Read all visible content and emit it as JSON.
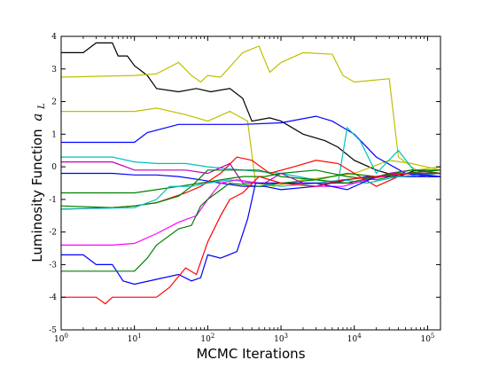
{
  "chart_data": {
    "type": "line",
    "xlabel": "MCMC Iterations",
    "ylabel": "Luminosity Function",
    "ylabel_symbol": "a",
    "ylabel_subscript": "L",
    "xscale": "log",
    "xlim": [
      1,
      150000
    ],
    "ylim": [
      -5,
      4
    ],
    "yticks": [
      -5,
      -4,
      -3,
      -2,
      -1,
      0,
      1,
      2,
      3,
      4
    ],
    "xticks": [
      {
        "value": 1,
        "base": "10",
        "exp": "0"
      },
      {
        "value": 10,
        "base": "10",
        "exp": "1"
      },
      {
        "value": 100,
        "base": "10",
        "exp": "2"
      },
      {
        "value": 1000,
        "base": "10",
        "exp": "3"
      },
      {
        "value": 10000,
        "base": "10",
        "exp": "4"
      },
      {
        "value": 100000,
        "base": "10",
        "exp": "5"
      }
    ],
    "grid": false,
    "legend": "none",
    "series": [
      {
        "color": "#000000",
        "points": [
          [
            1,
            3.5
          ],
          [
            2,
            3.5
          ],
          [
            3,
            3.8
          ],
          [
            5,
            3.8
          ],
          [
            6,
            3.4
          ],
          [
            8,
            3.4
          ],
          [
            10,
            3.1
          ],
          [
            15,
            2.8
          ],
          [
            20,
            2.4
          ],
          [
            40,
            2.3
          ],
          [
            70,
            2.4
          ],
          [
            110,
            2.3
          ],
          [
            200,
            2.4
          ],
          [
            300,
            2.1
          ],
          [
            400,
            1.4
          ],
          [
            700,
            1.5
          ],
          [
            1000,
            1.4
          ],
          [
            2000,
            1.0
          ],
          [
            4000,
            0.8
          ],
          [
            6000,
            0.6
          ],
          [
            10000,
            0.2
          ],
          [
            20000,
            -0.1
          ],
          [
            40000,
            -0.3
          ],
          [
            70000,
            -0.1
          ],
          [
            150000,
            -0.2
          ]
        ]
      },
      {
        "color": "#bfbf00",
        "points": [
          [
            1,
            2.75
          ],
          [
            10,
            2.8
          ],
          [
            20,
            2.85
          ],
          [
            40,
            3.2
          ],
          [
            60,
            2.8
          ],
          [
            80,
            2.6
          ],
          [
            100,
            2.8
          ],
          [
            150,
            2.75
          ],
          [
            300,
            3.5
          ],
          [
            500,
            3.7
          ],
          [
            700,
            2.9
          ],
          [
            1000,
            3.2
          ],
          [
            2000,
            3.5
          ],
          [
            5000,
            3.45
          ],
          [
            7000,
            2.8
          ],
          [
            10000,
            2.6
          ],
          [
            30000,
            2.7
          ],
          [
            40000,
            0.3
          ],
          [
            70000,
            -0.1
          ],
          [
            150000,
            0.0
          ]
        ]
      },
      {
        "color": "#bfbf00",
        "points": [
          [
            1,
            1.7
          ],
          [
            5,
            1.7
          ],
          [
            10,
            1.7
          ],
          [
            20,
            1.8
          ],
          [
            50,
            1.6
          ],
          [
            100,
            1.4
          ],
          [
            200,
            1.7
          ],
          [
            350,
            1.4
          ],
          [
            450,
            -0.5
          ],
          [
            800,
            -0.6
          ],
          [
            2000,
            -0.4
          ],
          [
            5000,
            -0.3
          ],
          [
            10000,
            -0.2
          ],
          [
            30000,
            0.2
          ],
          [
            60000,
            0.1
          ],
          [
            150000,
            -0.1
          ]
        ]
      },
      {
        "color": "#0000ff",
        "points": [
          [
            1,
            0.75
          ],
          [
            10,
            0.75
          ],
          [
            15,
            1.05
          ],
          [
            40,
            1.3
          ],
          [
            100,
            1.3
          ],
          [
            300,
            1.3
          ],
          [
            1000,
            1.35
          ],
          [
            3000,
            1.55
          ],
          [
            5000,
            1.4
          ],
          [
            10000,
            1.0
          ],
          [
            20000,
            0.3
          ],
          [
            50000,
            -0.2
          ],
          [
            100000,
            -0.3
          ],
          [
            150000,
            -0.3
          ]
        ]
      },
      {
        "color": "#00bfbf",
        "points": [
          [
            1,
            0.3
          ],
          [
            5,
            0.3
          ],
          [
            10,
            0.15
          ],
          [
            20,
            0.1
          ],
          [
            50,
            0.1
          ],
          [
            100,
            0.0
          ],
          [
            300,
            -0.1
          ],
          [
            1000,
            -0.2
          ],
          [
            3000,
            -0.4
          ],
          [
            6000,
            -0.5
          ],
          [
            8000,
            1.2
          ],
          [
            12000,
            0.8
          ],
          [
            20000,
            -0.2
          ],
          [
            40000,
            0.5
          ],
          [
            70000,
            -0.2
          ],
          [
            150000,
            -0.2
          ]
        ]
      },
      {
        "color": "#bf00bf",
        "points": [
          [
            1,
            0.15
          ],
          [
            5,
            0.15
          ],
          [
            10,
            -0.1
          ],
          [
            20,
            -0.1
          ],
          [
            50,
            -0.1
          ],
          [
            100,
            -0.2
          ],
          [
            200,
            0.1
          ],
          [
            300,
            -0.5
          ],
          [
            600,
            -0.5
          ],
          [
            1000,
            -0.2
          ],
          [
            2000,
            -0.5
          ],
          [
            5000,
            -0.5
          ],
          [
            10000,
            -0.5
          ],
          [
            30000,
            -0.2
          ],
          [
            60000,
            -0.1
          ],
          [
            150000,
            -0.2
          ]
        ]
      },
      {
        "color": "#0000ff",
        "points": [
          [
            1,
            -0.2
          ],
          [
            5,
            -0.2
          ],
          [
            10,
            -0.25
          ],
          [
            20,
            -0.25
          ],
          [
            40,
            -0.3
          ],
          [
            80,
            -0.4
          ],
          [
            150,
            -0.5
          ],
          [
            300,
            -0.6
          ],
          [
            600,
            -0.6
          ],
          [
            1000,
            -0.7
          ],
          [
            3000,
            -0.6
          ],
          [
            8000,
            -0.4
          ],
          [
            15000,
            -0.3
          ],
          [
            40000,
            -0.3
          ],
          [
            150000,
            -0.3
          ]
        ]
      },
      {
        "color": "#008000",
        "points": [
          [
            1,
            -0.8
          ],
          [
            5,
            -0.8
          ],
          [
            10,
            -0.8
          ],
          [
            20,
            -0.7
          ],
          [
            40,
            -0.6
          ],
          [
            80,
            -0.5
          ],
          [
            150,
            -0.4
          ],
          [
            300,
            -0.3
          ],
          [
            600,
            -0.3
          ],
          [
            1000,
            -0.2
          ],
          [
            3000,
            -0.1
          ],
          [
            8000,
            -0.3
          ],
          [
            20000,
            -0.4
          ],
          [
            50000,
            -0.2
          ],
          [
            150000,
            -0.1
          ]
        ]
      },
      {
        "color": "#ff0000",
        "points": [
          [
            1,
            -1.3
          ],
          [
            5,
            -1.25
          ],
          [
            10,
            -1.2
          ],
          [
            20,
            -1.1
          ],
          [
            50,
            -0.8
          ],
          [
            80,
            -0.6
          ],
          [
            150,
            -0.2
          ],
          [
            250,
            0.3
          ],
          [
            400,
            0.2
          ],
          [
            700,
            -0.2
          ],
          [
            1500,
            0.0
          ],
          [
            3000,
            0.2
          ],
          [
            6000,
            0.1
          ],
          [
            10000,
            -0.2
          ],
          [
            20000,
            -0.6
          ],
          [
            40000,
            -0.3
          ],
          [
            150000,
            -0.2
          ]
        ]
      },
      {
        "color": "#008000",
        "points": [
          [
            1,
            -1.2
          ],
          [
            5,
            -1.25
          ],
          [
            10,
            -1.2
          ],
          [
            20,
            -1.1
          ],
          [
            40,
            -0.9
          ],
          [
            60,
            -0.6
          ],
          [
            100,
            -0.1
          ],
          [
            200,
            -0.1
          ],
          [
            500,
            -0.1
          ],
          [
            1000,
            -0.3
          ],
          [
            3000,
            -0.4
          ],
          [
            8000,
            -0.2
          ],
          [
            20000,
            -0.3
          ],
          [
            60000,
            -0.1
          ],
          [
            150000,
            -0.1
          ]
        ]
      },
      {
        "color": "#00bfbf",
        "points": [
          [
            1,
            -1.3
          ],
          [
            10,
            -1.25
          ],
          [
            20,
            -1.0
          ],
          [
            30,
            -0.6
          ],
          [
            60,
            -0.6
          ],
          [
            100,
            -0.5
          ],
          [
            200,
            -0.4
          ],
          [
            500,
            -0.5
          ],
          [
            1000,
            -0.6
          ],
          [
            3000,
            -0.5
          ],
          [
            7000,
            -0.4
          ],
          [
            15000,
            -0.5
          ],
          [
            40000,
            -0.3
          ],
          [
            150000,
            -0.2
          ]
        ]
      },
      {
        "color": "#ff00ff",
        "points": [
          [
            1,
            -2.4
          ],
          [
            5,
            -2.4
          ],
          [
            10,
            -2.35
          ],
          [
            20,
            -2.05
          ],
          [
            40,
            -1.7
          ],
          [
            70,
            -1.5
          ],
          [
            100,
            -1.0
          ],
          [
            150,
            -0.5
          ],
          [
            250,
            -0.4
          ],
          [
            500,
            -0.5
          ],
          [
            1000,
            -0.5
          ],
          [
            3000,
            -0.6
          ],
          [
            7000,
            -0.6
          ],
          [
            15000,
            -0.4
          ],
          [
            40000,
            -0.2
          ],
          [
            150000,
            -0.2
          ]
        ]
      },
      {
        "color": "#0000ff",
        "points": [
          [
            1,
            -2.7
          ],
          [
            2,
            -2.7
          ],
          [
            3,
            -3.0
          ],
          [
            5,
            -3.0
          ],
          [
            7,
            -3.5
          ],
          [
            10,
            -3.6
          ],
          [
            20,
            -3.45
          ],
          [
            40,
            -3.3
          ],
          [
            60,
            -3.5
          ],
          [
            80,
            -3.4
          ],
          [
            100,
            -2.7
          ],
          [
            150,
            -2.8
          ],
          [
            250,
            -2.6
          ],
          [
            350,
            -1.6
          ],
          [
            450,
            -0.5
          ],
          [
            1000,
            -0.5
          ],
          [
            3000,
            -0.5
          ],
          [
            8000,
            -0.7
          ],
          [
            20000,
            -0.3
          ],
          [
            60000,
            -0.2
          ],
          [
            150000,
            -0.3
          ]
        ]
      },
      {
        "color": "#008000",
        "points": [
          [
            1,
            -3.2
          ],
          [
            5,
            -3.2
          ],
          [
            10,
            -3.2
          ],
          [
            15,
            -2.8
          ],
          [
            20,
            -2.4
          ],
          [
            40,
            -1.9
          ],
          [
            60,
            -1.8
          ],
          [
            80,
            -1.2
          ],
          [
            100,
            -1.0
          ],
          [
            200,
            -0.5
          ],
          [
            500,
            -0.6
          ],
          [
            1000,
            -0.5
          ],
          [
            3000,
            -0.4
          ],
          [
            8000,
            -0.5
          ],
          [
            20000,
            -0.3
          ],
          [
            60000,
            -0.1
          ],
          [
            150000,
            -0.2
          ]
        ]
      },
      {
        "color": "#ff0000",
        "points": [
          [
            1,
            -4.0
          ],
          [
            3,
            -4.0
          ],
          [
            4,
            -4.2
          ],
          [
            5,
            -4.0
          ],
          [
            10,
            -4.0
          ],
          [
            20,
            -4.0
          ],
          [
            30,
            -3.7
          ],
          [
            50,
            -3.1
          ],
          [
            70,
            -3.3
          ],
          [
            100,
            -2.3
          ],
          [
            150,
            -1.5
          ],
          [
            200,
            -1.0
          ],
          [
            300,
            -0.8
          ],
          [
            500,
            -0.3
          ],
          [
            1000,
            -0.5
          ],
          [
            3000,
            -0.6
          ],
          [
            7000,
            -0.4
          ],
          [
            20000,
            -0.3
          ],
          [
            60000,
            -0.2
          ],
          [
            150000,
            -0.2
          ]
        ]
      }
    ]
  }
}
